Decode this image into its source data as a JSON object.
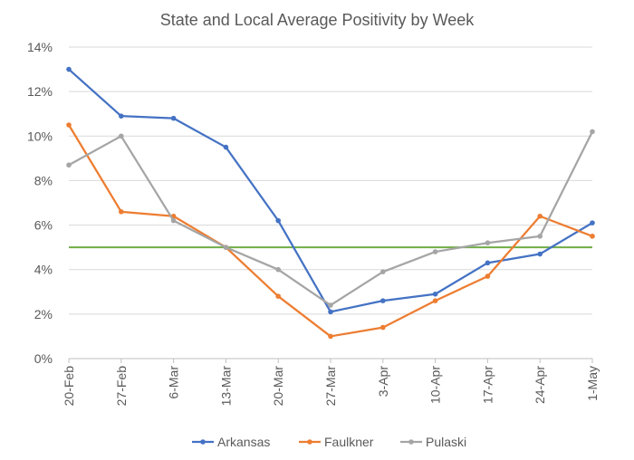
{
  "chart_data": {
    "type": "line",
    "title": "State and Local Average Positivity by Week",
    "xlabel": "",
    "ylabel": "",
    "categories": [
      "20-Feb",
      "27-Feb",
      "6-Mar",
      "13-Mar",
      "20-Mar",
      "27-Mar",
      "3-Apr",
      "10-Apr",
      "17-Apr",
      "24-Apr",
      "1-May"
    ],
    "ylim": [
      0,
      14
    ],
    "yticks": [
      0,
      2,
      4,
      6,
      8,
      10,
      12,
      14
    ],
    "ytick_labels": [
      "0%",
      "2%",
      "4%",
      "6%",
      "8%",
      "10%",
      "12%",
      "14%"
    ],
    "grid": "horizontal",
    "legend_position": "bottom",
    "series": [
      {
        "name": "Arkansas",
        "color": "#4472C4",
        "values": [
          13.0,
          10.9,
          10.8,
          9.5,
          6.2,
          2.1,
          2.6,
          2.9,
          4.3,
          4.7,
          6.1
        ]
      },
      {
        "name": "Faulkner",
        "color": "#ED7D31",
        "values": [
          10.5,
          6.6,
          6.4,
          5.0,
          2.8,
          1.0,
          1.4,
          2.6,
          3.7,
          6.4,
          5.5
        ]
      },
      {
        "name": "Pulaski",
        "color": "#A5A5A5",
        "values": [
          8.7,
          10.0,
          6.2,
          5.0,
          4.0,
          2.4,
          3.9,
          4.8,
          5.2,
          5.5,
          10.2
        ]
      }
    ],
    "reference_line": {
      "value": 5,
      "color": "#70AD47"
    }
  }
}
